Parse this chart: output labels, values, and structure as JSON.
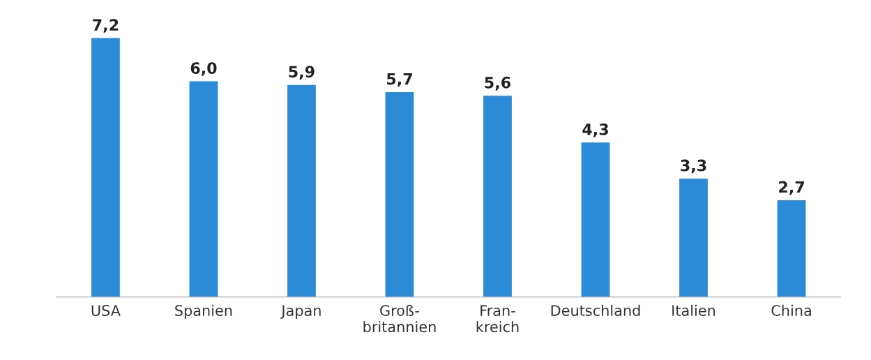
{
  "chart_data": {
    "type": "bar",
    "categories": [
      "USA",
      "Spanien",
      "Japan",
      "Groß-\nbritannien",
      "Fran-\nkreich",
      "Deutschland",
      "Italien",
      "China"
    ],
    "values": [
      7.2,
      6.0,
      5.9,
      5.7,
      5.6,
      4.3,
      3.3,
      2.7
    ],
    "value_labels": [
      "7,2",
      "6,0",
      "5,9",
      "5,7",
      "5,6",
      "4,3",
      "3,3",
      "2,7"
    ],
    "color": "#2b8bd6",
    "grid": false,
    "legend": false
  }
}
